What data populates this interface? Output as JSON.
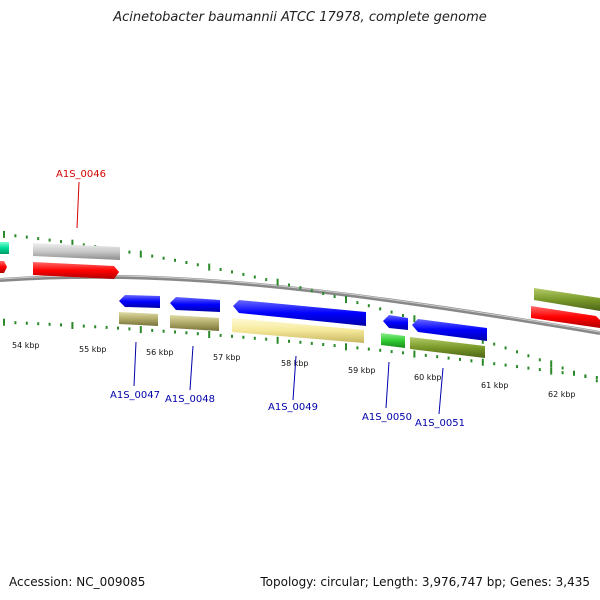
{
  "title": "Acinetobacter baumannii ATCC 17978, complete genome",
  "footer": {
    "accession": "Accession: NC_009085",
    "summary": "Topology: circular; Length: 3,976,747 bp; Genes: 3,435"
  },
  "scale_labels": [
    "54 kbp",
    "55 kbp",
    "56 kbp",
    "57 kbp",
    "58 kbp",
    "59 kbp",
    "60 kbp",
    "61 kbp",
    "62 kbp"
  ],
  "gene_labels": [
    {
      "name": "A1S_0046",
      "color": "#d40000"
    },
    {
      "name": "A1S_0047",
      "color": "#0000aa"
    },
    {
      "name": "A1S_0048",
      "color": "#0000aa"
    },
    {
      "name": "A1S_0049",
      "color": "#0000aa"
    },
    {
      "name": "A1S_0050",
      "color": "#0000aa"
    },
    {
      "name": "A1S_0051",
      "color": "#0000aa"
    }
  ],
  "colors": {
    "forward_cds": "#ff0000",
    "reverse_cds": "#0000ff",
    "olive": "#7a9a2a",
    "khaki": "#b0aa68",
    "pale_yellow": "#f5e89a",
    "green": "#33cc33",
    "grey": "#c8c8c8",
    "teal": "#00dd99",
    "backbone": "#888888",
    "tick": "#2a8a2a"
  }
}
